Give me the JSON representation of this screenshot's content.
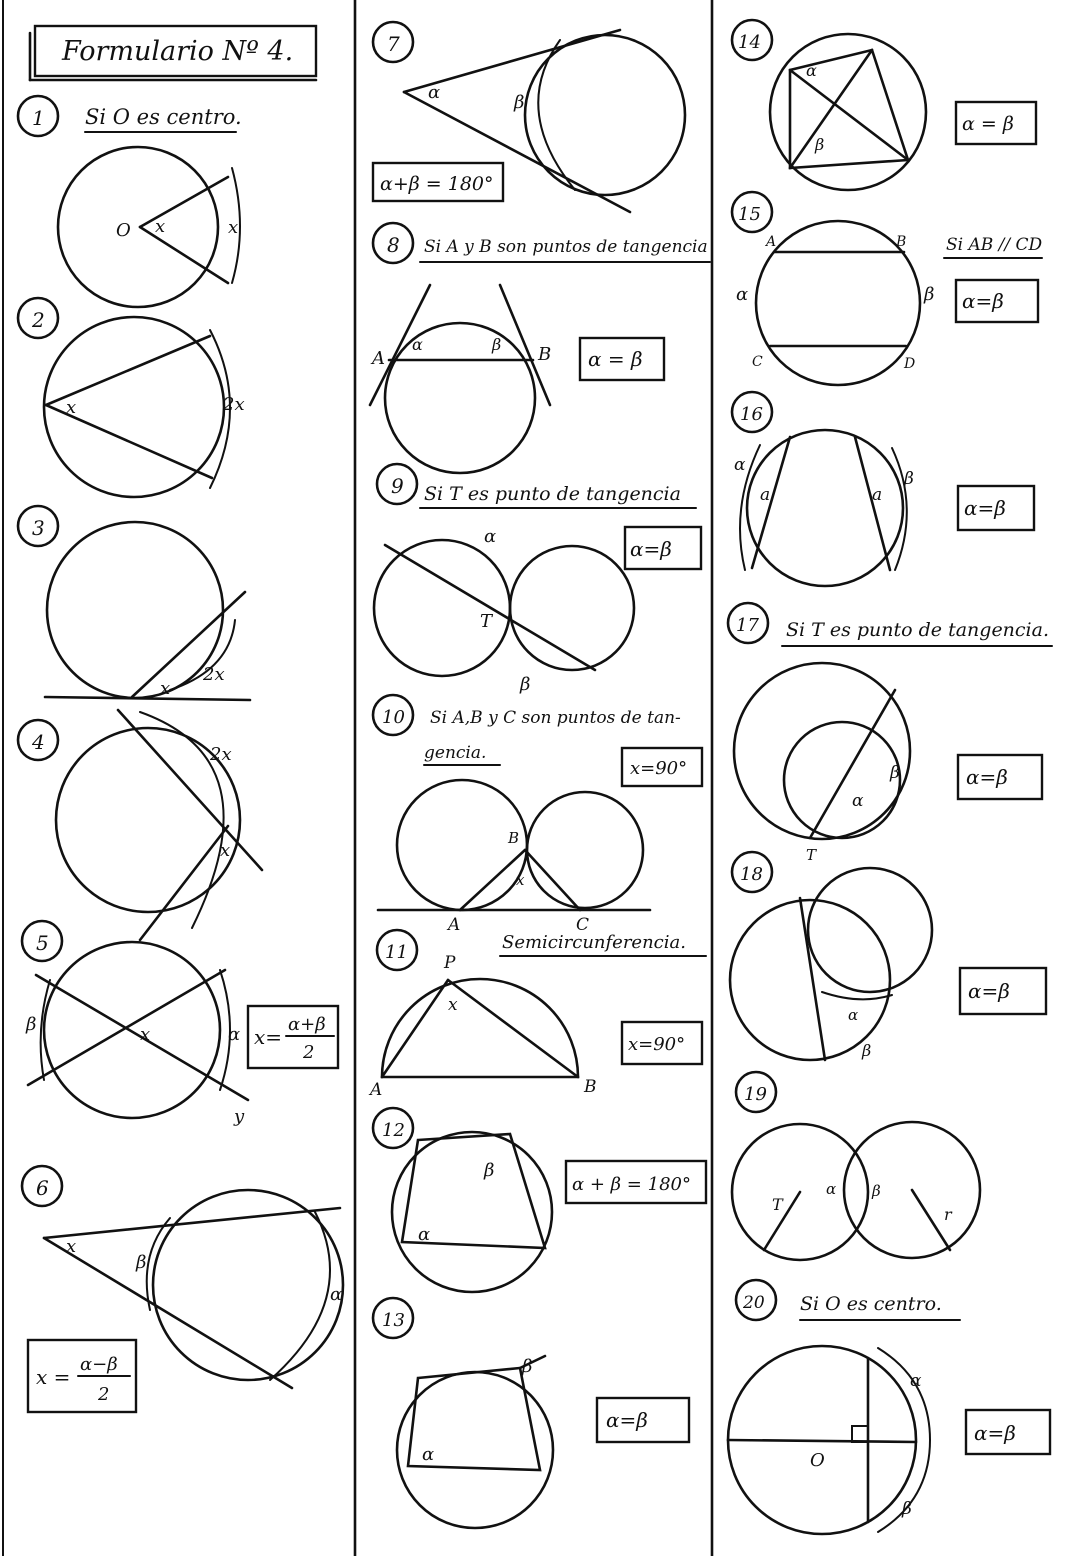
{
  "title": "Formulario Nº 4.",
  "items": [
    {
      "n": "1",
      "cond": "Si O es centro.",
      "labels": {
        "o": "O",
        "x1": "x",
        "x2": "x"
      }
    },
    {
      "n": "2",
      "labels": {
        "x": "x",
        "arc": "2x"
      }
    },
    {
      "n": "3",
      "labels": {
        "x": "x",
        "arc": "2x"
      }
    },
    {
      "n": "4",
      "labels": {
        "arc": "2x",
        "x": "x"
      }
    },
    {
      "n": "5",
      "formula": "x= α+β / 2",
      "f_num": "α+β",
      "f_den": "2",
      "f_lhs": "x=",
      "labels": {
        "a": "α",
        "b": "β",
        "x": "x",
        "y": "y"
      }
    },
    {
      "n": "6",
      "f_lhs": "x =",
      "f_num": "α−β",
      "f_den": "2",
      "labels": {
        "x": "x",
        "b": "β",
        "a": "α"
      }
    },
    {
      "n": "7",
      "formula": "α+β = 180°",
      "labels": {
        "a": "α",
        "b": "β"
      }
    },
    {
      "n": "8",
      "cond": "Si A y B son puntos de tangencia",
      "formula": "α = β",
      "labels": {
        "A": "A",
        "B": "B",
        "a": "α",
        "b": "β"
      }
    },
    {
      "n": "9",
      "cond": "Si T es punto de tangencia",
      "formula": "α=β",
      "labels": {
        "a": "α",
        "T": "T",
        "b": "β"
      }
    },
    {
      "n": "10",
      "cond1": "Si A,B y C son puntos de tan-",
      "cond2": "gencia.",
      "formula": "x=90°",
      "labels": {
        "A": "A",
        "B": "B",
        "C": "C",
        "x": "x"
      }
    },
    {
      "n": "11",
      "cond": "Semicircunferencia.",
      "formula": "x=90°",
      "labels": {
        "P": "P",
        "x": "x",
        "A": "A",
        "B": "B"
      }
    },
    {
      "n": "12",
      "formula": "α + β = 180°",
      "labels": {
        "a": "α",
        "b": "β"
      }
    },
    {
      "n": "13",
      "formula": "α=β",
      "labels": {
        "a": "α",
        "b": "β"
      }
    },
    {
      "n": "14",
      "formula": "α = β",
      "labels": {
        "a": "α",
        "b": "β"
      }
    },
    {
      "n": "15",
      "cond": "Si AB // CD",
      "formula": "α=β",
      "labels": {
        "A": "A",
        "B": "B",
        "C": "C",
        "D": "D",
        "a": "α",
        "b": "β"
      }
    },
    {
      "n": "16",
      "formula": "α=β",
      "labels": {
        "a1": "α",
        "a2": "a",
        "a3": "a",
        "b": "β"
      }
    },
    {
      "n": "17",
      "cond": "Si T es punto de tangencia.",
      "formula": "α=β",
      "labels": {
        "a": "α",
        "b": "β",
        "T": "T"
      }
    },
    {
      "n": "18",
      "formula": "α=β",
      "labels": {
        "a": "α",
        "b": "β"
      }
    },
    {
      "n": "19",
      "labels": {
        "T": "T",
        "a": "α",
        "b": "β",
        "r": "r"
      }
    },
    {
      "n": "20",
      "cond": "Si O es centro.",
      "formula": "α=β",
      "labels": {
        "o": "O",
        "a": "α",
        "b": "β"
      }
    }
  ]
}
